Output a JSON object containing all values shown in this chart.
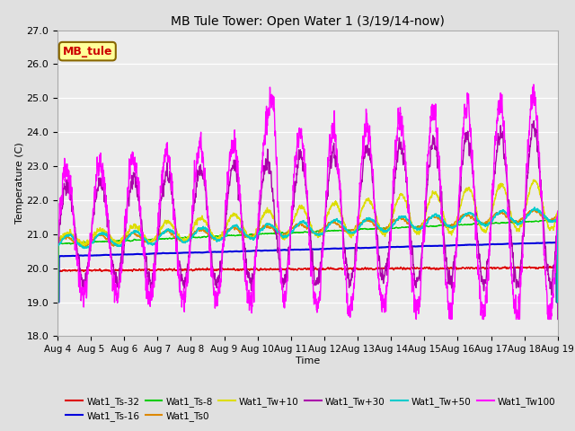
{
  "title": "MB Tule Tower: Open Water 1 (3/19/14-now)",
  "xlabel": "Time",
  "ylabel": "Temperature (C)",
  "ylim": [
    18.0,
    27.0
  ],
  "yticks": [
    18.0,
    19.0,
    20.0,
    21.0,
    22.0,
    23.0,
    24.0,
    25.0,
    26.0,
    27.0
  ],
  "xtick_labels": [
    "Aug 4",
    "Aug 5",
    "Aug 6",
    "Aug 7",
    "Aug 8",
    "Aug 9",
    "Aug 10",
    "Aug 11",
    "Aug 12",
    "Aug 13",
    "Aug 14",
    "Aug 15",
    "Aug 16",
    "Aug 17",
    "Aug 18",
    "Aug 19"
  ],
  "series_order": [
    "Wat1_Ts-32",
    "Wat1_Ts-16",
    "Wat1_Ts-8",
    "Wat1_Ts0",
    "Wat1_Tw+10",
    "Wat1_Tw+30",
    "Wat1_Tw+50",
    "Wat1_Tw100"
  ],
  "series": {
    "Wat1_Ts-32": {
      "color": "#dd0000",
      "lw": 1.0
    },
    "Wat1_Ts-16": {
      "color": "#0000dd",
      "lw": 1.5
    },
    "Wat1_Ts-8": {
      "color": "#00cc00",
      "lw": 1.0
    },
    "Wat1_Ts0": {
      "color": "#dd8800",
      "lw": 1.0
    },
    "Wat1_Tw+10": {
      "color": "#dddd00",
      "lw": 1.0
    },
    "Wat1_Tw+30": {
      "color": "#aa00aa",
      "lw": 1.0
    },
    "Wat1_Tw+50": {
      "color": "#00cccc",
      "lw": 1.2
    },
    "Wat1_Tw100": {
      "color": "#ff00ff",
      "lw": 1.0
    }
  },
  "annotation_box": {
    "text": "MB_tule",
    "facecolor": "#ffff99",
    "edgecolor": "#886600",
    "textcolor": "#cc0000",
    "fontsize": 9
  },
  "bg_color": "#e0e0e0",
  "plot_bg": "#ebebeb",
  "n_points": 5000,
  "days": 15,
  "seed": 42
}
